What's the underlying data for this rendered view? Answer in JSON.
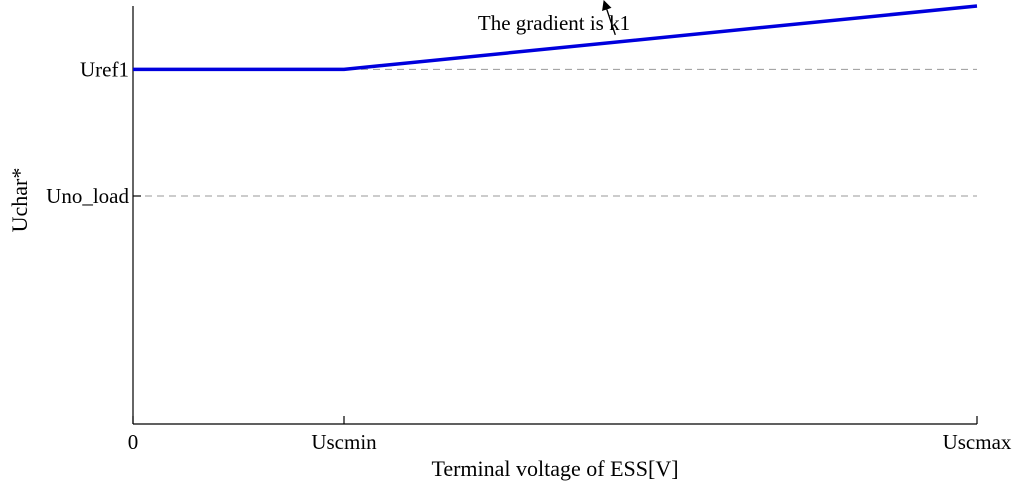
{
  "chart_data": {
    "type": "line",
    "title": "",
    "xlabel": "Terminal voltage of ESS[V]",
    "ylabel": "Uchar*",
    "x_ticks": [
      {
        "label": "0",
        "value": 0
      },
      {
        "label": "Uscmin",
        "value": 1
      },
      {
        "label": "Uscmax",
        "value": 4
      }
    ],
    "y_ticks": [
      {
        "label": "Uno_load",
        "value": 1
      },
      {
        "label": "Uref1",
        "value": 2
      }
    ],
    "xlim": [
      0,
      4
    ],
    "ylim": [
      -0.8,
      2.5
    ],
    "grid": "dashed horizontal reference lines at Uref1 and Uno_load",
    "series": [
      {
        "color": "#0000dd",
        "x": [
          0,
          1,
          4
        ],
        "y": [
          2,
          2,
          2.5
        ]
      }
    ],
    "annotations": [
      {
        "text": "The gradient is k1",
        "arrow_to_x": 2.3
      }
    ],
    "colors": {
      "line": "#0000dd",
      "axis": "#000000",
      "reference": "#999999"
    }
  }
}
